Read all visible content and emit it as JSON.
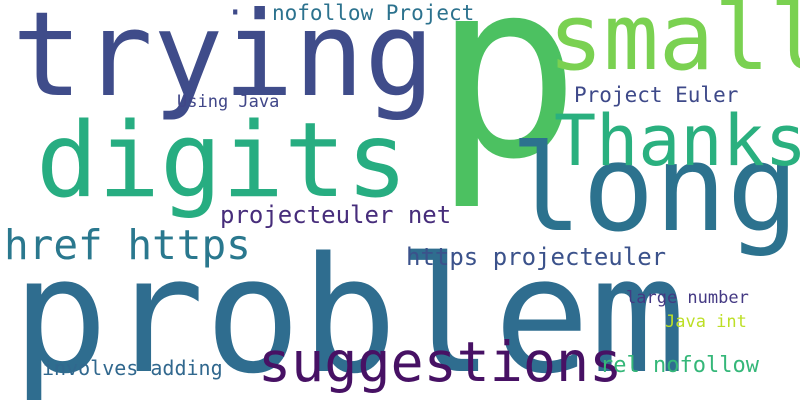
{
  "cloud": {
    "words": [
      {
        "text": "p",
        "color": "#4cc161"
      },
      {
        "text": "problem",
        "color": "#2f6d8f"
      },
      {
        "text": "trying",
        "color": "#3f4c8a"
      },
      {
        "text": "digits",
        "color": "#27ad81"
      },
      {
        "text": "long",
        "color": "#2c728e"
      },
      {
        "text": "small",
        "color": "#7ad151"
      },
      {
        "text": "Thanks",
        "color": "#2ab07f"
      },
      {
        "text": "suggestions",
        "color": "#471164"
      },
      {
        "text": "href https",
        "color": "#2a788e"
      },
      {
        "text": "projecteuler net",
        "color": "#472d7b"
      },
      {
        "text": "https projecteuler",
        "color": "#3b528b"
      },
      {
        "text": "nofollow Project",
        "color": "#2c728e"
      },
      {
        "text": "Project Euler",
        "color": "#3e4989"
      },
      {
        "text": "Using Java",
        "color": "#404688"
      },
      {
        "text": "large number",
        "color": "#443983"
      },
      {
        "text": "Java int",
        "color": "#bddf26"
      },
      {
        "text": "involves adding",
        "color": "#31688e"
      },
      {
        "text": "rel nofollow",
        "color": "#35b779"
      },
      {
        "text": "·",
        "color": "#3e4a89"
      }
    ]
  }
}
